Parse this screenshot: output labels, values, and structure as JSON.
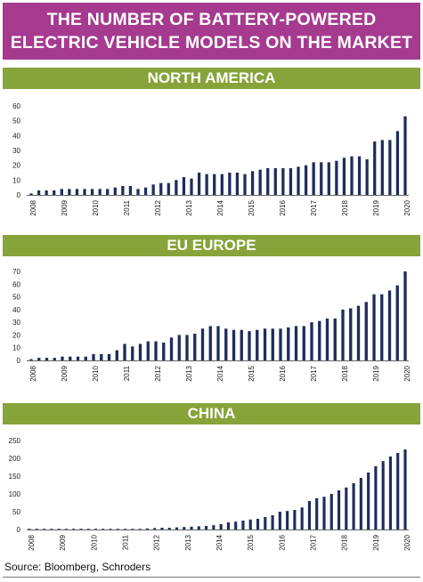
{
  "title": {
    "line1": "THE NUMBER OF BATTERY-POWERED",
    "line2": "ELECTRIC VEHICLE MODELS ON THE MARKET"
  },
  "colors": {
    "title_bg": "#a53a8f",
    "banner_bg": "#86a43a",
    "bar": "#1f2c5c"
  },
  "source": "Source: Bloomberg, Schroders",
  "chart_data": [
    {
      "type": "bar",
      "title": "NORTH AMERICA",
      "x_tick_labels": [
        "2008",
        "2009",
        "2010",
        "2011",
        "2012",
        "2013",
        "2014",
        "2015",
        "2016",
        "2017",
        "2018",
        "2019",
        "2020"
      ],
      "y_ticks": [
        0,
        10,
        20,
        30,
        40,
        50,
        60
      ],
      "ylim": [
        0,
        60
      ],
      "grid": false,
      "values": [
        1,
        3,
        3,
        3,
        4,
        4,
        4,
        4,
        4,
        4,
        4,
        5,
        6,
        6,
        4,
        5,
        7,
        8,
        8,
        10,
        12,
        11,
        15,
        14,
        14,
        14,
        15,
        15,
        14,
        16,
        17,
        18,
        18,
        18,
        18,
        19,
        20,
        22,
        22,
        22,
        23,
        25,
        26,
        26,
        24,
        36,
        37,
        37,
        43,
        53
      ]
    },
    {
      "type": "bar",
      "title": "EU EUROPE",
      "x_tick_labels": [
        "2008",
        "2009",
        "2010",
        "2011",
        "2012",
        "2013",
        "2014",
        "2015",
        "2016",
        "2017",
        "2018",
        "2019",
        "2020"
      ],
      "y_ticks": [
        0,
        10,
        20,
        30,
        40,
        50,
        60,
        70
      ],
      "ylim": [
        0,
        70
      ],
      "grid": false,
      "values": [
        1,
        2,
        2,
        2,
        3,
        3,
        3,
        3,
        5,
        5,
        5,
        8,
        13,
        11,
        13,
        15,
        15,
        14,
        18,
        20,
        20,
        21,
        25,
        27,
        27,
        25,
        24,
        24,
        23,
        24,
        25,
        25,
        25,
        26,
        27,
        27,
        30,
        31,
        33,
        33,
        40,
        41,
        43,
        46,
        52,
        52,
        55,
        59,
        70
      ]
    },
    {
      "type": "bar",
      "title": "CHINA",
      "x_tick_labels": [
        "2008",
        "2009",
        "2010",
        "2011",
        "2012",
        "2013",
        "2014",
        "2015",
        "2016",
        "2017",
        "2018",
        "2019",
        "2020"
      ],
      "y_ticks": [
        0,
        50,
        100,
        150,
        200,
        250
      ],
      "ylim": [
        0,
        250
      ],
      "grid": false,
      "values": [
        0,
        0,
        0,
        0,
        0,
        0,
        0,
        0,
        0,
        0,
        0,
        1,
        1,
        1,
        2,
        2,
        3,
        4,
        5,
        5,
        6,
        7,
        8,
        9,
        10,
        12,
        15,
        20,
        22,
        25,
        28,
        30,
        35,
        40,
        50,
        52,
        55,
        62,
        80,
        88,
        92,
        100,
        110,
        118,
        130,
        145,
        160,
        178,
        192,
        205,
        215,
        225
      ]
    }
  ]
}
